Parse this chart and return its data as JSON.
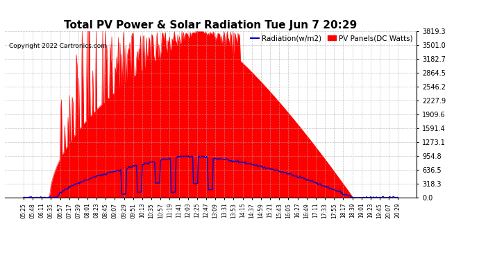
{
  "title": "Total PV Power & Solar Radiation Tue Jun 7 20:29",
  "copyright": "Copyright 2022 Cartronics.com",
  "legend_radiation": "Radiation(w/m2)",
  "legend_pv": "PV Panels(DC Watts)",
  "ylabel_right_ticks": [
    0.0,
    318.3,
    636.5,
    954.8,
    1273.1,
    1591.4,
    1909.6,
    2227.9,
    2546.2,
    2864.5,
    3182.7,
    3501.0,
    3819.3
  ],
  "ymax": 3819.3,
  "background_color": "#ffffff",
  "grid_color": "#aaaaaa",
  "red_color": "#ff0000",
  "blue_color": "#0000cc",
  "title_fontsize": 11,
  "tick_fontsize": 7,
  "xtick_fontsize": 5.5,
  "copyright_fontsize": 6.5,
  "legend_fontsize": 7.5
}
